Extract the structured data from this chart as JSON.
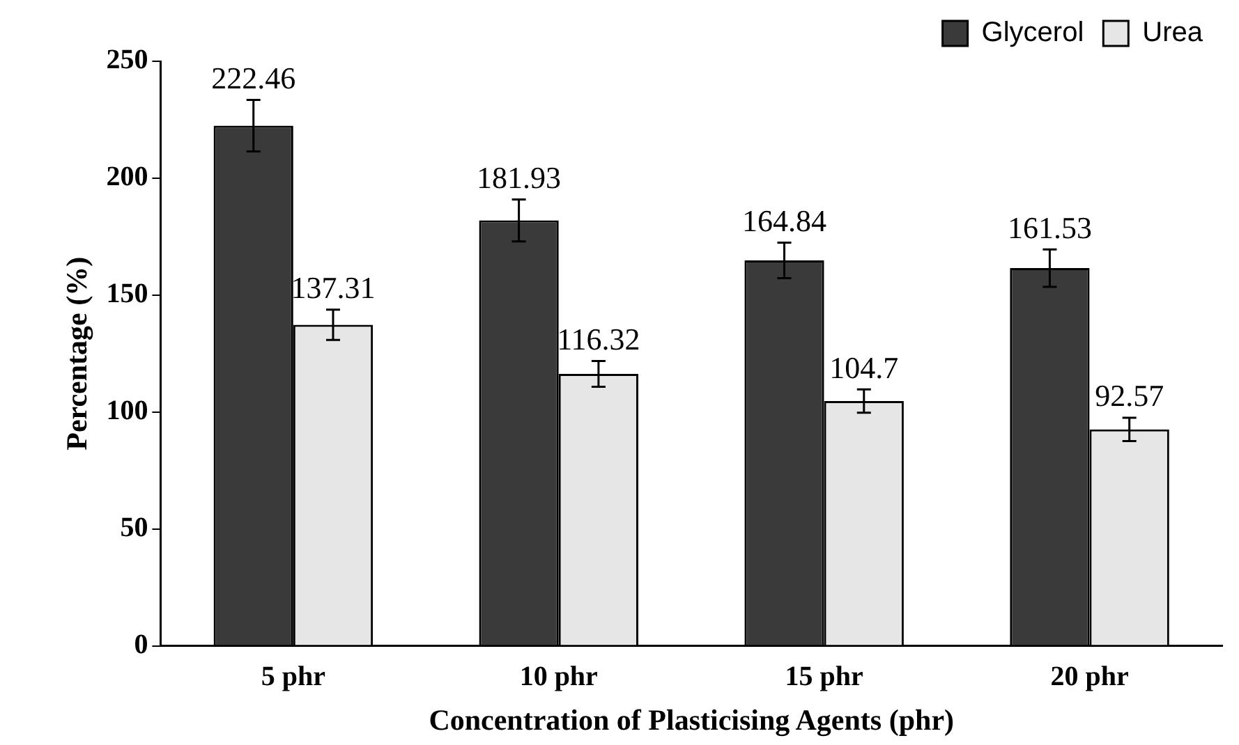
{
  "chart_data": {
    "type": "bar",
    "xlabel": "Concentration of Plasticising Agents (phr)",
    "ylabel": "Percentage (%)",
    "categories": [
      "5 phr",
      "10 phr",
      "15 phr",
      "20 phr"
    ],
    "series": [
      {
        "name": "Glycerol",
        "color": "#3a3a3a",
        "values": [
          222.46,
          181.93,
          164.84,
          161.53
        ],
        "errors": [
          11,
          9,
          7.6,
          8
        ]
      },
      {
        "name": "Urea",
        "color": "#e6e6e6",
        "values": [
          137.31,
          116.32,
          104.7,
          92.57
        ],
        "errors": [
          6.5,
          5.5,
          5,
          5
        ]
      }
    ],
    "ylim": [
      0,
      250
    ],
    "yticks": [
      0,
      50,
      100,
      150,
      200,
      250
    ],
    "grid": false,
    "legend": "top right",
    "data_labels": true
  }
}
